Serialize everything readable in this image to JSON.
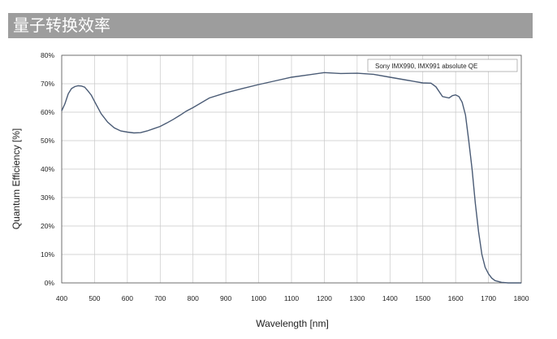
{
  "title": "量子转换效率",
  "chart_data": {
    "type": "line",
    "xlabel": "Wavelength [nm]",
    "ylabel": "Quantum Efficiency [%]",
    "xlim": [
      400,
      1800
    ],
    "ylim": [
      0,
      80
    ],
    "xticks": [
      "400",
      "500",
      "600",
      "700",
      "800",
      "900",
      "1000",
      "1100",
      "1200",
      "1300",
      "1400",
      "1500",
      "1600",
      "1700",
      "1800"
    ],
    "yticks": [
      "0%",
      "10%",
      "20%",
      "30%",
      "40%",
      "50%",
      "60%",
      "70%",
      "80%"
    ],
    "grid": true,
    "legend_position": "top-right",
    "line_color": "#4a5b75",
    "series": [
      {
        "name": "Sony IMX990, IMX991 absolute QE",
        "x": [
          400,
          410,
          420,
          430,
          440,
          450,
          460,
          470,
          480,
          490,
          500,
          520,
          540,
          560,
          580,
          600,
          620,
          640,
          660,
          680,
          700,
          720,
          740,
          760,
          780,
          800,
          850,
          900,
          950,
          1000,
          1050,
          1100,
          1150,
          1200,
          1250,
          1300,
          1350,
          1400,
          1450,
          1500,
          1525,
          1540,
          1560,
          1580,
          1590,
          1600,
          1610,
          1620,
          1630,
          1640,
          1650,
          1660,
          1670,
          1680,
          1690,
          1700,
          1710,
          1720,
          1740,
          1760,
          1780,
          1800
        ],
        "y": [
          60.5,
          63,
          66.5,
          68.3,
          69,
          69.3,
          69.2,
          68.8,
          67.5,
          66,
          63.8,
          59.5,
          56.5,
          54.5,
          53.4,
          53,
          52.7,
          52.8,
          53.4,
          54.2,
          55.0,
          56.2,
          57.5,
          58.9,
          60.4,
          61.6,
          65.0,
          66.8,
          68.3,
          69.7,
          71.0,
          72.3,
          73.1,
          73.9,
          73.6,
          73.7,
          73.3,
          72.3,
          71.3,
          70.3,
          70.2,
          68.9,
          65.5,
          65.0,
          65.8,
          66.1,
          65.5,
          63.5,
          59,
          50,
          40,
          28,
          18,
          10,
          5.5,
          3.2,
          1.7,
          0.8,
          0.2,
          0,
          0,
          0
        ]
      }
    ]
  }
}
